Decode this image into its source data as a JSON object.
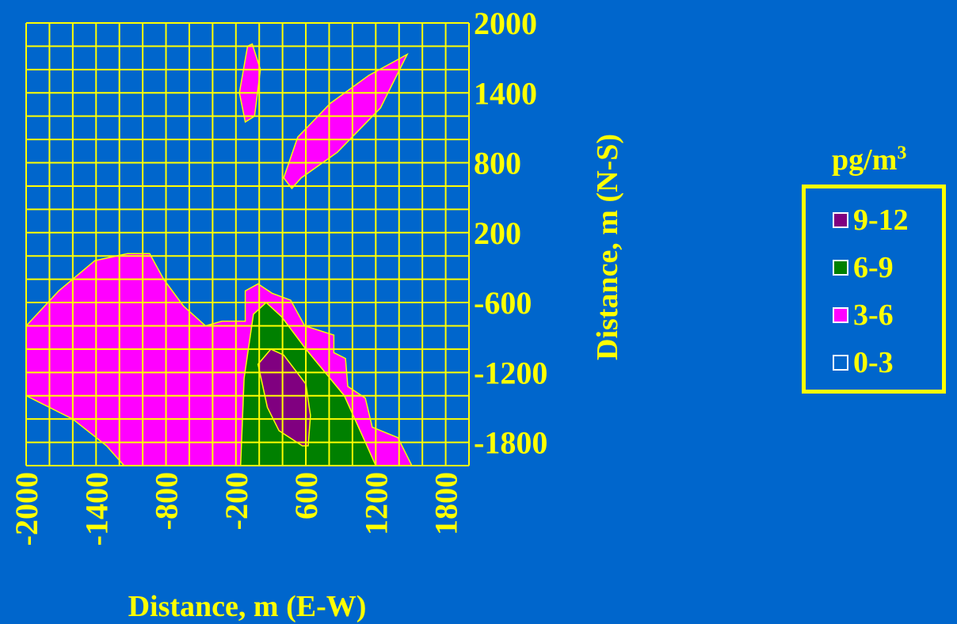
{
  "chart_data": {
    "type": "heatmap",
    "subtype": "filled-contour",
    "xlabel": "Distance, m (E-W)",
    "ylabel": "Distance, m (N-S)",
    "xlim": [
      -2000,
      1800
    ],
    "ylim": [
      -1800,
      2000
    ],
    "x_ticks": [
      "-2000",
      "-1400",
      "-800",
      "-200",
      "600",
      "1200",
      "1800"
    ],
    "y_ticks": [
      "2000",
      "1400",
      "800",
      "200",
      "-600",
      "-1200",
      "-1800"
    ],
    "grid": true,
    "legend_position": "right",
    "legend": {
      "title_main": "pg/m",
      "title_sup": "3",
      "items": [
        {
          "label": "9-12",
          "color": "#800080"
        },
        {
          "label": "6-9",
          "color": "#008000"
        },
        {
          "label": "3-6",
          "color": "#ff00ff"
        },
        {
          "label": "0-3",
          "color": "#0066cc"
        }
      ]
    },
    "contours": [
      {
        "level": "3-6",
        "color": "#ff00ff",
        "points": [
          [
            -2000,
            -1200
          ],
          [
            -2000,
            -600
          ],
          [
            -1720,
            -300
          ],
          [
            -1410,
            -40
          ],
          [
            -1130,
            20
          ],
          [
            -940,
            20
          ],
          [
            -820,
            -200
          ],
          [
            -650,
            -430
          ],
          [
            -460,
            -600
          ],
          [
            -320,
            -560
          ],
          [
            -120,
            -560
          ],
          [
            -120,
            -300
          ],
          [
            -10,
            -240
          ],
          [
            110,
            -320
          ],
          [
            270,
            -380
          ],
          [
            390,
            -600
          ],
          [
            640,
            -680
          ],
          [
            640,
            -830
          ],
          [
            740,
            -880
          ],
          [
            760,
            -1120
          ],
          [
            910,
            -1220
          ],
          [
            970,
            -1470
          ],
          [
            1190,
            -1560
          ],
          [
            1310,
            -1800
          ],
          [
            -10,
            -1800
          ],
          [
            -10,
            -1800
          ],
          [
            -1160,
            -1800
          ],
          [
            -1310,
            -1630
          ],
          [
            -1600,
            -1400
          ]
        ]
      },
      {
        "level": "3-6",
        "color": "#ff00ff",
        "points": [
          [
            -170,
            1400
          ],
          [
            -100,
            1800
          ],
          [
            -60,
            1820
          ],
          [
            10,
            1600
          ],
          [
            -40,
            1200
          ],
          [
            -120,
            1150
          ]
        ]
      },
      {
        "level": "3-6",
        "color": "#ff00ff",
        "points": [
          [
            210,
            670
          ],
          [
            330,
            1020
          ],
          [
            610,
            1310
          ],
          [
            940,
            1550
          ],
          [
            1270,
            1730
          ],
          [
            1040,
            1270
          ],
          [
            670,
            890
          ],
          [
            360,
            670
          ],
          [
            280,
            580
          ]
        ]
      },
      {
        "level": "6-9",
        "color": "#008000",
        "points": [
          [
            -160,
            -1800
          ],
          [
            -130,
            -1050
          ],
          [
            -50,
            -500
          ],
          [
            60,
            -400
          ],
          [
            190,
            -520
          ],
          [
            400,
            -800
          ],
          [
            730,
            -1200
          ],
          [
            920,
            -1620
          ],
          [
            1000,
            -1800
          ]
        ]
      },
      {
        "level": "9-12",
        "color": "#800080",
        "points": [
          [
            -10,
            -930
          ],
          [
            100,
            -800
          ],
          [
            210,
            -850
          ],
          [
            400,
            -1100
          ],
          [
            440,
            -1370
          ],
          [
            420,
            -1630
          ],
          [
            370,
            -1630
          ],
          [
            170,
            -1500
          ],
          [
            70,
            -1300
          ]
        ]
      }
    ]
  }
}
